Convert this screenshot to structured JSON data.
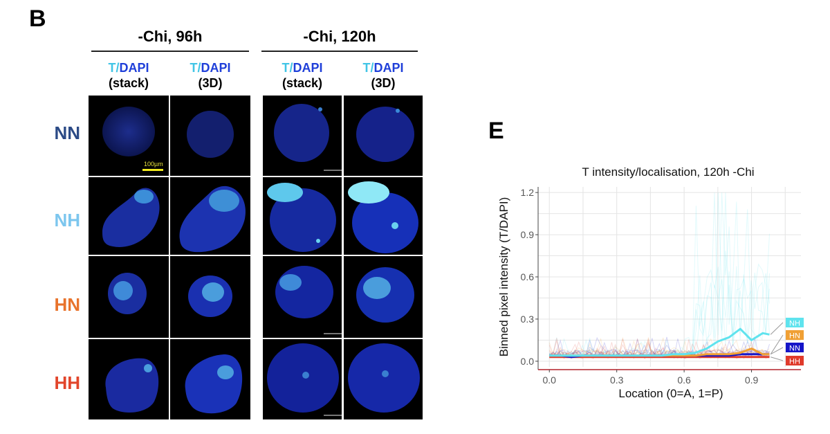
{
  "panel_b": {
    "letter": "B",
    "conditions": [
      {
        "title": "-Chi, 96h"
      },
      {
        "title": "-Chi, 120h"
      }
    ],
    "column_headers": [
      {
        "t": "T/",
        "dapi": "DAPI",
        "sub": "(stack)"
      },
      {
        "t": "T/",
        "dapi": "DAPI",
        "sub": "(3D)"
      },
      {
        "t": "T/",
        "dapi": "DAPI",
        "sub": "(stack)"
      },
      {
        "t": "T/",
        "dapi": "DAPI",
        "sub": "(3D)"
      }
    ],
    "rows": [
      {
        "label": "NN",
        "color": "#2b4a86"
      },
      {
        "label": "NH",
        "color": "#7cc6ee"
      },
      {
        "label": "HN",
        "color": "#e8732c"
      },
      {
        "label": "HH",
        "color": "#e2452b"
      }
    ],
    "scale_bar_label": "100µm",
    "colors": {
      "t_channel": "#41c5e6",
      "dapi_channel": "#1f3fd9",
      "scale_bar": "#f2ea1e"
    }
  },
  "panel_e": {
    "letter": "E",
    "chart_data": {
      "type": "line",
      "title": "T intensity/localisation, 120h -Chi",
      "xlabel": "Location (0=A, 1=P)",
      "ylabel": "Binned pixel intensity (T/DAPI)",
      "xlim": [
        -0.05,
        1.12
      ],
      "ylim": [
        -0.04,
        1.24
      ],
      "x_ticks": [
        "0.0",
        "0.3",
        "0.6",
        "0.9"
      ],
      "y_ticks": [
        "0.0",
        "0.3",
        "0.6",
        "0.9",
        "1.2"
      ],
      "grid": true,
      "legend_position": "right",
      "x": [
        0.0,
        0.05,
        0.1,
        0.15,
        0.2,
        0.25,
        0.3,
        0.35,
        0.4,
        0.45,
        0.5,
        0.55,
        0.6,
        0.65,
        0.7,
        0.75,
        0.8,
        0.85,
        0.9,
        0.95,
        0.98
      ],
      "series": [
        {
          "name": "NH",
          "color": "#5fe3ee",
          "values": [
            0.04,
            0.04,
            0.04,
            0.04,
            0.04,
            0.04,
            0.04,
            0.04,
            0.04,
            0.04,
            0.04,
            0.05,
            0.05,
            0.06,
            0.09,
            0.14,
            0.17,
            0.23,
            0.15,
            0.2,
            0.19
          ]
        },
        {
          "name": "HN",
          "color": "#f0a035",
          "values": [
            0.04,
            0.04,
            0.04,
            0.04,
            0.04,
            0.04,
            0.04,
            0.04,
            0.04,
            0.04,
            0.04,
            0.04,
            0.04,
            0.04,
            0.05,
            0.05,
            0.05,
            0.06,
            0.09,
            0.05,
            0.05
          ]
        },
        {
          "name": "NN",
          "color": "#1515c8",
          "values": [
            0.04,
            0.04,
            0.03,
            0.04,
            0.04,
            0.04,
            0.04,
            0.04,
            0.04,
            0.04,
            0.04,
            0.04,
            0.04,
            0.04,
            0.04,
            0.04,
            0.04,
            0.05,
            0.05,
            0.05,
            0.05
          ]
        },
        {
          "name": "HH",
          "color": "#e03a2b",
          "values": [
            0.03,
            0.03,
            0.03,
            0.03,
            0.03,
            0.03,
            0.03,
            0.03,
            0.03,
            0.03,
            0.03,
            0.03,
            0.03,
            0.03,
            0.03,
            0.03,
            0.03,
            0.03,
            0.03,
            0.03,
            0.03
          ]
        }
      ]
    }
  }
}
